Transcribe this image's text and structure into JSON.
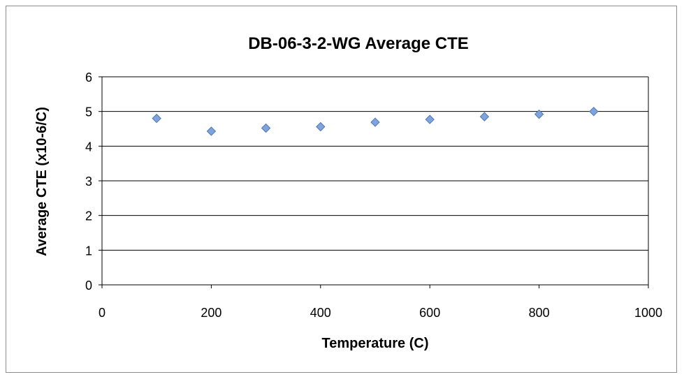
{
  "chart_data": {
    "type": "scatter",
    "title": "DB-06-3-2-WG Average CTE",
    "xlabel": "Temperature (C)",
    "ylabel": "Average CTE (x10-6/C)",
    "xlim": [
      0,
      1000
    ],
    "ylim": [
      0,
      6
    ],
    "xticks": [
      0,
      200,
      400,
      600,
      800,
      1000
    ],
    "yticks": [
      0,
      1,
      2,
      3,
      4,
      5,
      6
    ],
    "grid": "horizontal",
    "legend": "none",
    "marker": "diamond",
    "marker_color": "#7FA3DA",
    "marker_edge": "#4F78B8",
    "series": [
      {
        "x": [
          100,
          200,
          300,
          400,
          500,
          600,
          700,
          800,
          900
        ],
        "y": [
          4.8,
          4.43,
          4.52,
          4.56,
          4.69,
          4.77,
          4.85,
          4.92,
          5.0
        ]
      }
    ]
  }
}
